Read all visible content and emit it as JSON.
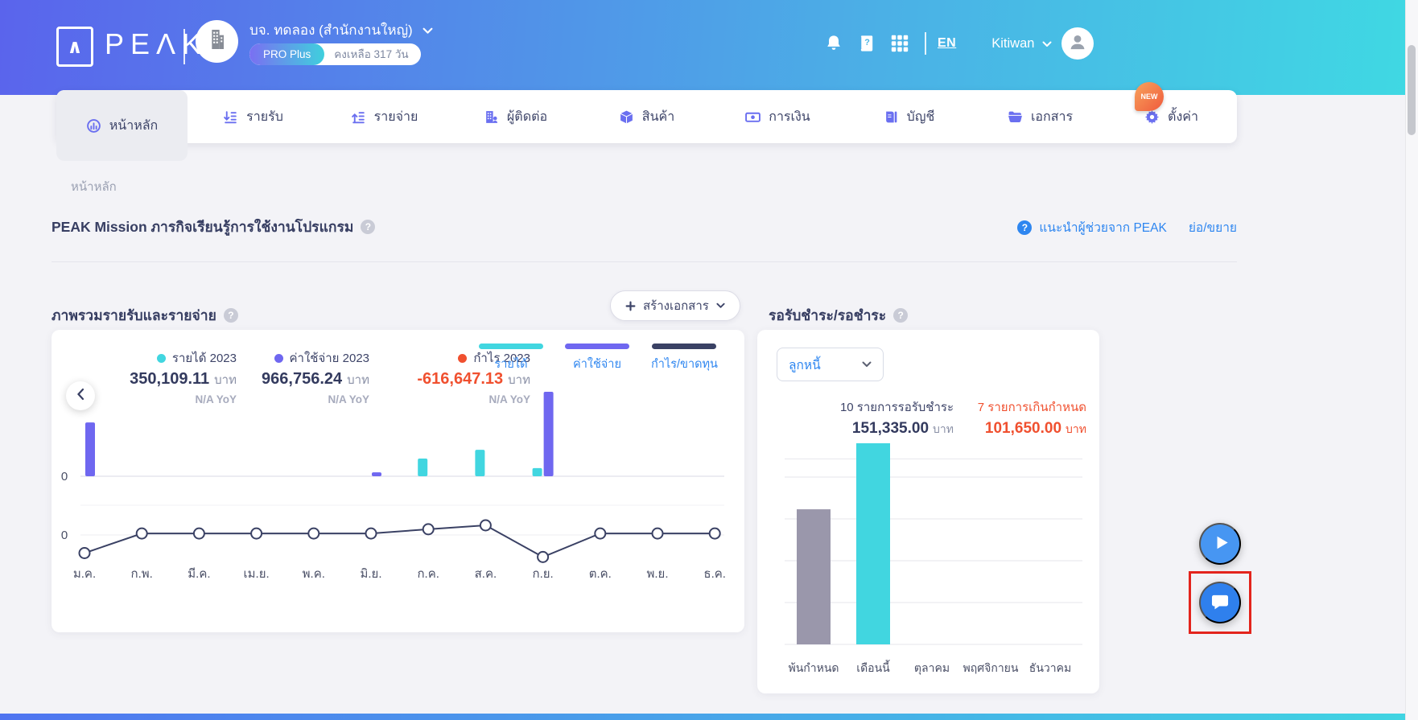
{
  "header": {
    "logo_text": "PEΛK",
    "company_name": "บจ. ทดลอง (สำนักงานใหญ่)",
    "plan_badge": "PRO Plus",
    "plan_remaining": "คงเหลือ 317 วัน",
    "language": "EN",
    "user_name": "Kitiwan",
    "icons": [
      "bell-icon",
      "help-book-icon",
      "apps-grid-icon",
      "user-avatar-icon"
    ]
  },
  "nav": {
    "tabs": [
      {
        "id": "dashboard",
        "label": "หน้าหลัก",
        "active": true
      },
      {
        "id": "income",
        "label": "รายรับ",
        "active": false
      },
      {
        "id": "expense",
        "label": "รายจ่าย",
        "active": false
      },
      {
        "id": "contacts",
        "label": "ผู้ติดต่อ",
        "active": false
      },
      {
        "id": "products",
        "label": "สินค้า",
        "active": false
      },
      {
        "id": "finance",
        "label": "การเงิน",
        "active": false
      },
      {
        "id": "accounting",
        "label": "บัญชี",
        "active": false
      },
      {
        "id": "documents",
        "label": "เอกสาร",
        "active": false
      },
      {
        "id": "settings",
        "label": "ตั้งค่า",
        "active": false,
        "badge": "NEW"
      }
    ]
  },
  "breadcrumb": "หน้าหลัก",
  "mission": {
    "title": "PEAK Mission ภารกิจเรียนรู้การใช้งานโปรแกรม",
    "assistant_link": "แนะนำผู้ช่วยจาก PEAK",
    "collapse_link": "ย่อ/ขยาย"
  },
  "overview": {
    "title": "ภาพรวมรายรับและรายจ่าย",
    "create_button": "สร้างเอกสาร",
    "stats": [
      {
        "label": "รายได้ 2023",
        "value": "350,109.11",
        "unit": "บาท",
        "yoy": "N/A YoY",
        "color": "#41d6e0",
        "negative": false
      },
      {
        "label": "ค่าใช้จ่าย 2023",
        "value": "966,756.24",
        "unit": "บาท",
        "yoy": "N/A YoY",
        "color": "#6f67f0",
        "negative": false
      },
      {
        "label": "กำไร 2023",
        "value": "-616,647.13",
        "unit": "บาท",
        "yoy": "N/A YoY",
        "color": "#f0502f",
        "negative": true
      }
    ],
    "toggles": [
      {
        "label": "รายได้",
        "color": "#41d6e0"
      },
      {
        "label": "ค่าใช้จ่าย",
        "color": "#6f67f0"
      },
      {
        "label": "กำไร/ขาดทุน",
        "color": "#3a4164"
      }
    ]
  },
  "receivable": {
    "title": "รอรับชำระ/รอชำระ",
    "dropdown_value": "ลูกหนี้",
    "pending_count_label": "10 รายการรอรับชำระ",
    "pending_amount": "151,335.00",
    "pending_unit": "บาท",
    "overdue_count_label": "7 รายการเกินกำหนด",
    "overdue_amount": "101,650.00",
    "overdue_unit": "บาท"
  },
  "chart_data": [
    {
      "type": "bar+line",
      "title": "ภาพรวมรายรับและรายจ่าย",
      "categories": [
        "ม.ค.",
        "ก.พ.",
        "มี.ค.",
        "เม.ย.",
        "พ.ค.",
        "มิ.ย.",
        "ก.ค.",
        "ส.ค.",
        "ก.ย.",
        "ต.ค.",
        "พ.ย.",
        "ธ.ค."
      ],
      "y_zero_label": "0",
      "series": [
        {
          "name": "รายได้",
          "type": "bar",
          "color": "#41d6e0",
          "values": [
            0,
            0,
            0,
            0,
            0,
            0,
            63000,
            94000,
            29000,
            0,
            0,
            0
          ]
        },
        {
          "name": "ค่าใช้จ่าย",
          "type": "bar",
          "color": "#6f67f0",
          "values": [
            191000,
            0,
            0,
            0,
            0,
            14000,
            0,
            0,
            300000,
            0,
            0,
            0
          ]
        },
        {
          "name": "กำไร/ขาดทุน",
          "type": "line",
          "color": "#3a4164",
          "values": [
            -60000,
            5000,
            5000,
            5000,
            5000,
            5000,
            19000,
            32000,
            -73000,
            5000,
            5000,
            5000
          ]
        }
      ]
    },
    {
      "type": "bar",
      "title": "รอรับชำระ/รอชำระ",
      "categories": [
        "พ้นกำหนด",
        "เดือนนี้",
        "ตุลาคม",
        "พฤศจิกายน",
        "ธันวาคม"
      ],
      "values": [
        101650,
        151335,
        0,
        0,
        0
      ],
      "colors": [
        "#9a97ab",
        "#41d6e0",
        "#9a97ab",
        "#9a97ab",
        "#9a97ab"
      ],
      "grid": true
    }
  ],
  "colors": {
    "accent_blue": "#2e86f0",
    "navy": "#373e62",
    "cyan": "#41d6e0",
    "purple": "#6f67f0",
    "red": "#f0502f",
    "highlight_red": "#e3241d",
    "header_gradient_start": "#5a64ec",
    "header_gradient_end": "#3fd9e3"
  }
}
